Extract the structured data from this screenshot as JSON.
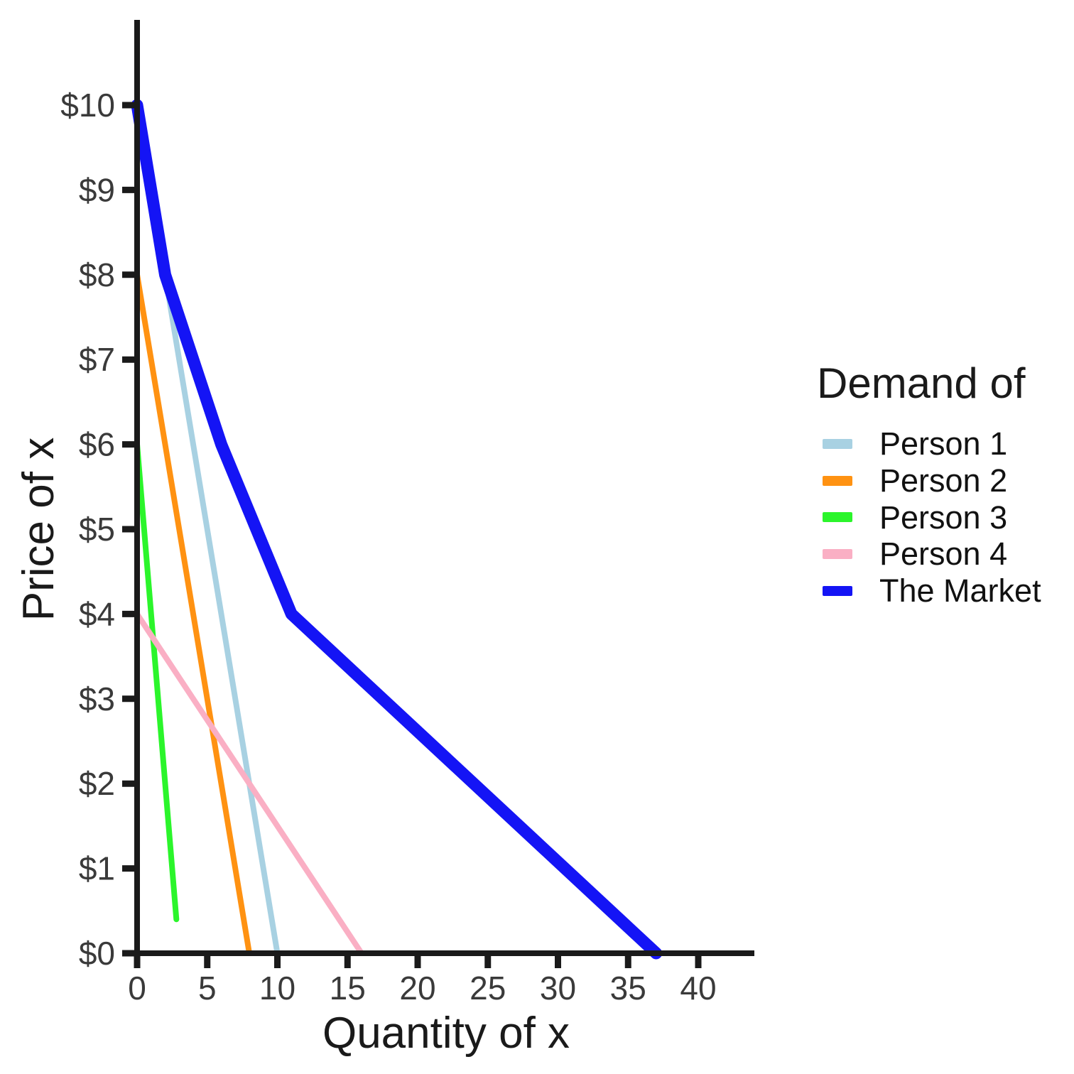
{
  "chart_data": {
    "type": "line",
    "title": "",
    "xlabel": "Quantity of x",
    "ylabel": "Price of x",
    "xlim": [
      0,
      44
    ],
    "ylim": [
      0,
      11
    ],
    "x_ticks": [
      0,
      5,
      10,
      15,
      20,
      25,
      30,
      35,
      40
    ],
    "y_ticks": [
      0,
      1,
      2,
      3,
      4,
      5,
      6,
      7,
      8,
      9,
      10
    ],
    "y_tick_prefix": "$",
    "grid": false,
    "legend_title": "Demand of",
    "legend_position": "right",
    "axis_color": "#1a1a1a",
    "tick_label_color": "#3a3a3a",
    "series": [
      {
        "name": "Person 1",
        "color": "#a8d1e2",
        "line_width": 8,
        "points": [
          [
            0,
            10
          ],
          [
            10,
            0
          ]
        ]
      },
      {
        "name": "Person 2",
        "color": "#ff9212",
        "line_width": 8,
        "points": [
          [
            0,
            8
          ],
          [
            8,
            0
          ]
        ]
      },
      {
        "name": "Person 3",
        "color": "#2bf52b",
        "line_width": 8,
        "points": [
          [
            0,
            6
          ],
          [
            2.8,
            0.4
          ]
        ]
      },
      {
        "name": "Person 4",
        "color": "#faafc4",
        "line_width": 8,
        "points": [
          [
            0,
            4
          ],
          [
            16,
            0
          ]
        ]
      },
      {
        "name": "The Market",
        "color": "#1414f5",
        "line_width": 17,
        "points": [
          [
            0,
            10
          ],
          [
            2,
            8
          ],
          [
            6,
            6
          ],
          [
            11,
            4
          ],
          [
            37,
            0
          ]
        ]
      }
    ]
  }
}
